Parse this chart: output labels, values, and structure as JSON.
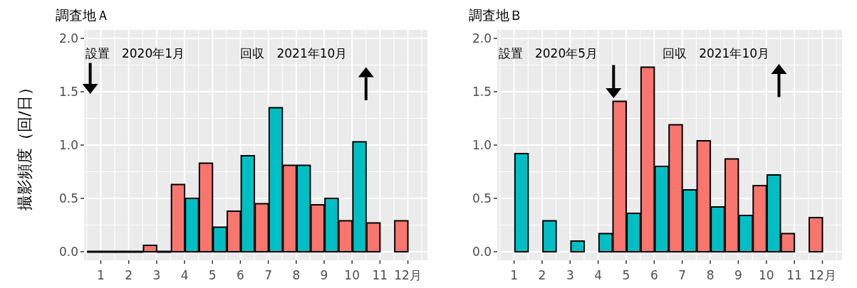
{
  "chart_data": [
    {
      "type": "bar",
      "title": "調査地Ａ",
      "ylabel": "撮影頻度（回/日）",
      "categories": [
        "1",
        "2",
        "3",
        "4",
        "5",
        "6",
        "7",
        "8",
        "9",
        "10",
        "11",
        "12月"
      ],
      "series": [
        {
          "color": "#f8766d",
          "values": [
            0,
            0,
            0.06,
            0.63,
            0.83,
            0.38,
            0.45,
            0.81,
            0.44,
            0.29,
            0.27,
            0.29
          ]
        },
        {
          "color": "#00bfc4",
          "values": [
            0,
            0,
            0,
            0.5,
            0.23,
            0.9,
            1.35,
            0.81,
            0.5,
            1.03,
            null,
            null
          ]
        }
      ],
      "ylim": [
        -0.08,
        2.08
      ],
      "yticks": [
        {
          "value": 0,
          "label": "0.0"
        },
        {
          "value": 0.5,
          "label": "0.5"
        },
        {
          "value": 1,
          "label": "1.0"
        },
        {
          "value": 1.5,
          "label": "1.5"
        },
        {
          "value": 2,
          "label": "2.0"
        }
      ],
      "grid": true,
      "annotations": [
        "設置　2020年1月",
        "回収　2021年10月"
      ]
    },
    {
      "type": "bar",
      "title": "調査地Ｂ",
      "categories": [
        "1",
        "2",
        "3",
        "4",
        "5",
        "6",
        "7",
        "8",
        "9",
        "10",
        "11",
        "12月"
      ],
      "series": [
        {
          "color": "#f8766d",
          "values": [
            null,
            null,
            null,
            null,
            1.41,
            1.73,
            1.19,
            1.04,
            0.87,
            0.62,
            0.17,
            0.32
          ]
        },
        {
          "color": "#00bfc4",
          "values": [
            0.92,
            0.29,
            0.1,
            0.17,
            0.36,
            0.8,
            0.58,
            0.42,
            0.34,
            0.72,
            null,
            null
          ]
        }
      ],
      "ylim": [
        -0.08,
        2.08
      ],
      "yticks": [
        {
          "value": 0,
          "label": "0.0"
        },
        {
          "value": 0.5,
          "label": "0.5"
        },
        {
          "value": 1,
          "label": "1.0"
        },
        {
          "value": 1.5,
          "label": "1.5"
        },
        {
          "value": 2,
          "label": "2.0"
        }
      ],
      "grid": true,
      "annotations": [
        "設置　2020年5月",
        "回収　2021年10月"
      ]
    }
  ]
}
